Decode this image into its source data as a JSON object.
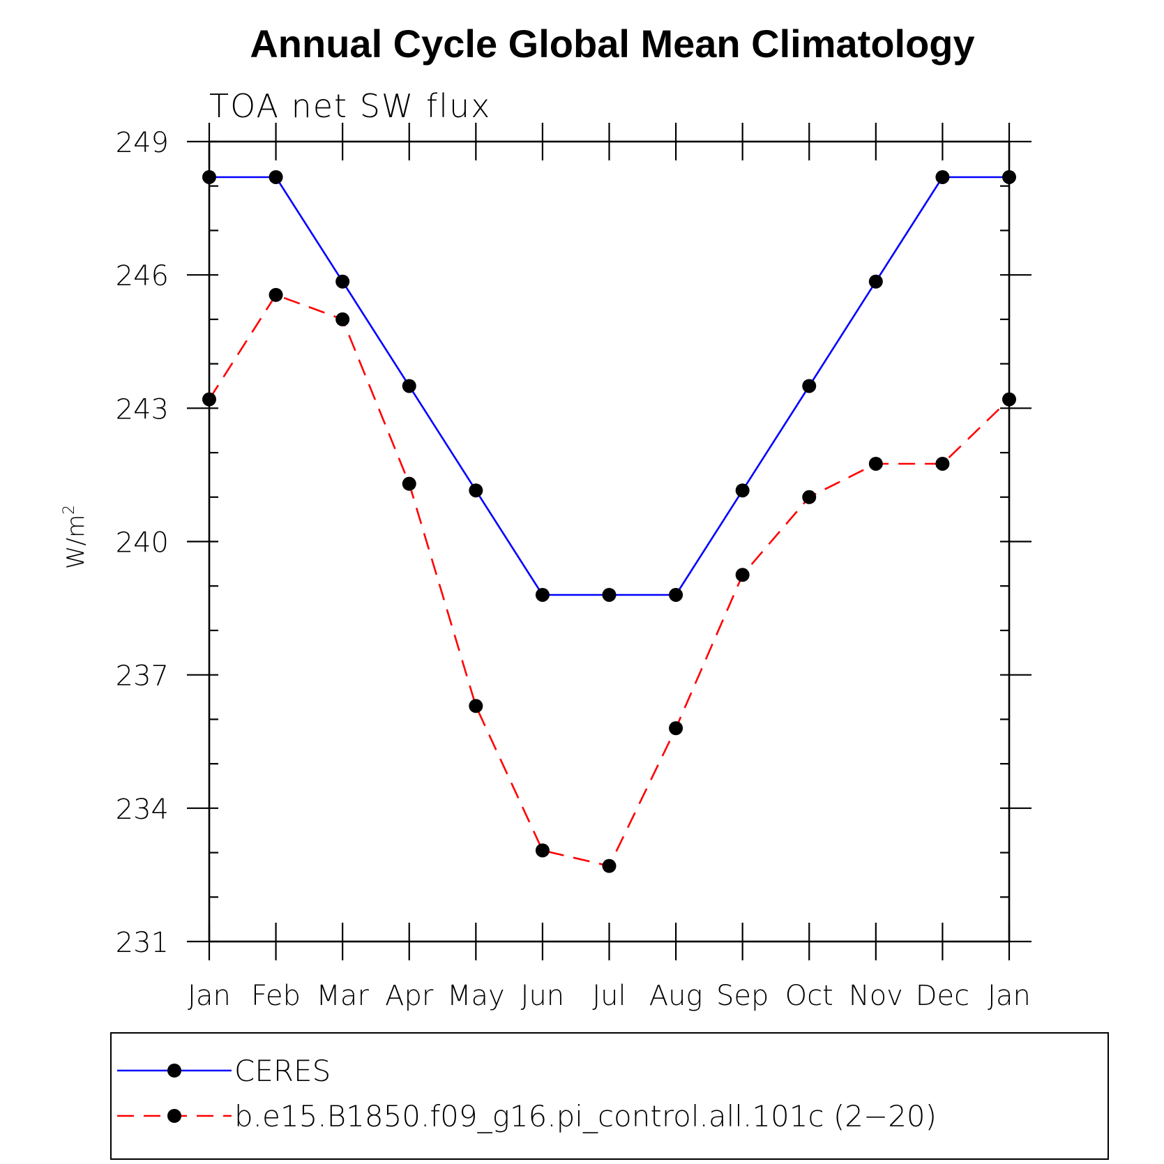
{
  "chart_data": {
    "type": "line",
    "title": "Annual Cycle Global Mean Climatology",
    "subtitle": "TOA net SW flux",
    "ylabel": "W/m",
    "ylabel_superscript": "2",
    "xlabel": "",
    "categories": [
      "Jan",
      "Feb",
      "Mar",
      "Apr",
      "May",
      "Jun",
      "Jul",
      "Aug",
      "Sep",
      "Oct",
      "Nov",
      "Dec",
      "Jan"
    ],
    "ylim": [
      231,
      249
    ],
    "yticks": [
      231,
      234,
      237,
      240,
      243,
      246,
      249
    ],
    "yticks_text": [
      "231",
      "234",
      "237",
      "240",
      "243",
      "246",
      "249"
    ],
    "grid": false,
    "legend_position": "bottom",
    "series": [
      {
        "name": "CERES",
        "color": "#0000ff",
        "dash": "solid",
        "values": [
          248.2,
          248.2,
          245.85,
          243.5,
          241.15,
          238.8,
          238.8,
          238.8,
          241.15,
          243.5,
          245.85,
          248.2,
          248.2
        ]
      },
      {
        "name": "b.e15.B1850.f09_g16.pi_control.all.101c (2−20)",
        "color": "#ff0000",
        "dash": "dashed",
        "values": [
          243.2,
          245.55,
          245.0,
          241.3,
          236.3,
          233.05,
          232.7,
          235.8,
          239.25,
          241.0,
          241.75,
          241.75,
          243.2
        ]
      }
    ]
  }
}
